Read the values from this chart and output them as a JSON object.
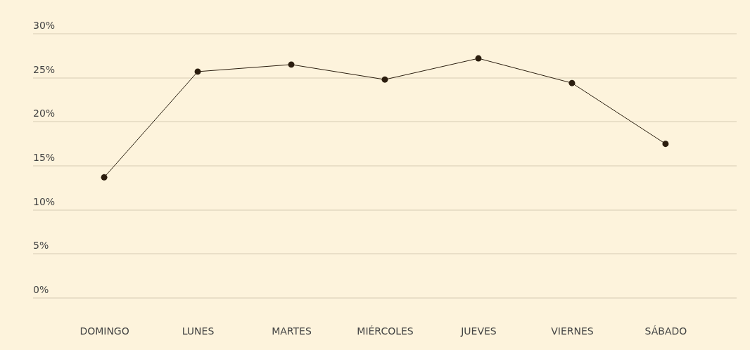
{
  "chart_data": {
    "type": "line",
    "categories": [
      "DOMINGO",
      "LUNES",
      "MARTES",
      "MIÉRCOLES",
      "JUEVES",
      "VIERNES",
      "SÁBADO"
    ],
    "series": [
      {
        "color": "#2b1d0e",
        "values": [
          13.7,
          25.7,
          26.5,
          24.8,
          27.2,
          24.4,
          17.5
        ]
      }
    ],
    "ylim": [
      0,
      30
    ],
    "yticks": [
      {
        "value": 0,
        "label": "0%"
      },
      {
        "value": 5,
        "label": "5%"
      },
      {
        "value": 10,
        "label": "10%"
      },
      {
        "value": 15,
        "label": "15%"
      },
      {
        "value": 20,
        "label": "20%"
      },
      {
        "value": 25,
        "label": "25%"
      },
      {
        "value": 30,
        "label": "30%"
      }
    ],
    "grid": "y",
    "marker": "circle",
    "line_style": "solid"
  }
}
